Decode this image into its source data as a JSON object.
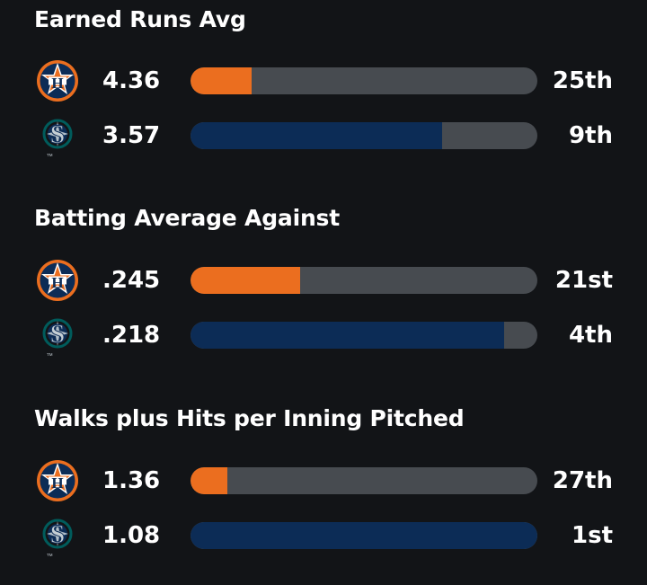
{
  "colors": {
    "background": "#121417",
    "bar_track": "#474b50",
    "astros_bar": "#eb6e1f",
    "mariners_bar": "#0c2c56"
  },
  "teams": {
    "astros": {
      "logo_icon": "houston-astros-logo-icon",
      "logo_letter": "H"
    },
    "mariners": {
      "logo_icon": "seattle-mariners-logo-icon",
      "logo_letter": "S",
      "trademark": "TM"
    }
  },
  "stats": [
    {
      "title": "Earned Runs Avg",
      "rows": [
        {
          "team": "astros",
          "value": "4.36",
          "rank": "25th",
          "fill_pct": 17.5
        },
        {
          "team": "mariners",
          "value": "3.57",
          "rank": "9th",
          "fill_pct": 72.5
        }
      ]
    },
    {
      "title": "Batting Average Against",
      "rows": [
        {
          "team": "astros",
          "value": ".245",
          "rank": "21st",
          "fill_pct": 31.5
        },
        {
          "team": "mariners",
          "value": ".218",
          "rank": "4th",
          "fill_pct": 90.5
        }
      ]
    },
    {
      "title": "Walks plus Hits per Inning Pitched",
      "rows": [
        {
          "team": "astros",
          "value": "1.36",
          "rank": "27th",
          "fill_pct": 10.5
        },
        {
          "team": "mariners",
          "value": "1.08",
          "rank": "1st",
          "fill_pct": 100
        }
      ]
    }
  ]
}
